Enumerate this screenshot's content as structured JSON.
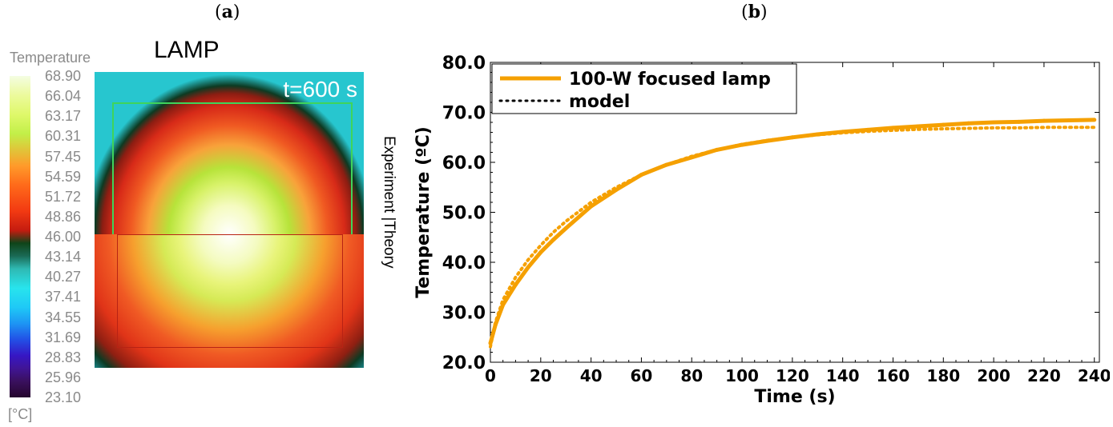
{
  "panels": {
    "a": {
      "label_open": "(",
      "label_letter": "a",
      "label_close": ")"
    },
    "b": {
      "label_open": "(",
      "label_letter": "b",
      "label_close": ")"
    }
  },
  "thermal_map": {
    "colorbar_title": "Temperature",
    "colorbar_ticks": [
      "68.90",
      "66.04",
      "63.17",
      "60.31",
      "57.45",
      "54.59",
      "51.72",
      "48.86",
      "46.00",
      "43.14",
      "40.27",
      "37.41",
      "34.55",
      "31.69",
      "28.83",
      "25.96",
      "23.10"
    ],
    "unit": "[°C]",
    "title": "LAMP",
    "time_label": "t=600 s",
    "side_label": "Experiment |Theory"
  },
  "chart_data": {
    "type": "line",
    "title": "",
    "xlabel": "Time (s)",
    "ylabel": "Temperature (ºC)",
    "xlim": [
      0,
      242
    ],
    "ylim": [
      20,
      80
    ],
    "xticks": [
      "0",
      "20",
      "40",
      "60",
      "80",
      "100",
      "120",
      "140",
      "160",
      "180",
      "200",
      "220",
      "240"
    ],
    "yticks": [
      "20.0",
      "30.0",
      "40.0",
      "50.0",
      "60.0",
      "70.0",
      "80.0"
    ],
    "legend_position": "top-left",
    "series": [
      {
        "name": "100-W focused lamp",
        "style": "solid",
        "color": "#F5A000",
        "x": [
          0,
          2,
          5,
          10,
          15,
          20,
          25,
          30,
          40,
          50,
          60,
          70,
          80,
          90,
          100,
          110,
          120,
          130,
          140,
          150,
          160,
          170,
          180,
          190,
          200,
          210,
          220,
          230,
          240
        ],
        "y": [
          23.8,
          27.5,
          31.5,
          35.5,
          39.0,
          42.0,
          44.5,
          46.8,
          51.2,
          54.5,
          57.5,
          59.5,
          61.0,
          62.5,
          63.5,
          64.3,
          65.0,
          65.6,
          66.1,
          66.5,
          66.9,
          67.2,
          67.5,
          67.8,
          68.0,
          68.1,
          68.3,
          68.4,
          68.5
        ]
      },
      {
        "name": "model",
        "style": "dotted",
        "color": "#F5A000",
        "x": [
          0,
          2,
          5,
          10,
          15,
          20,
          25,
          30,
          40,
          50,
          60,
          70,
          80,
          90,
          100,
          110,
          120,
          130,
          140,
          150,
          160,
          170,
          180,
          190,
          200,
          210,
          220,
          230,
          240
        ],
        "y": [
          23.1,
          28.0,
          32.5,
          37.0,
          40.5,
          43.4,
          46.0,
          48.2,
          52.0,
          55.0,
          57.5,
          59.5,
          61.2,
          62.5,
          63.6,
          64.4,
          65.0,
          65.5,
          65.9,
          66.2,
          66.4,
          66.6,
          66.7,
          66.8,
          66.9,
          66.9,
          67.0,
          67.0,
          67.0
        ]
      }
    ]
  }
}
